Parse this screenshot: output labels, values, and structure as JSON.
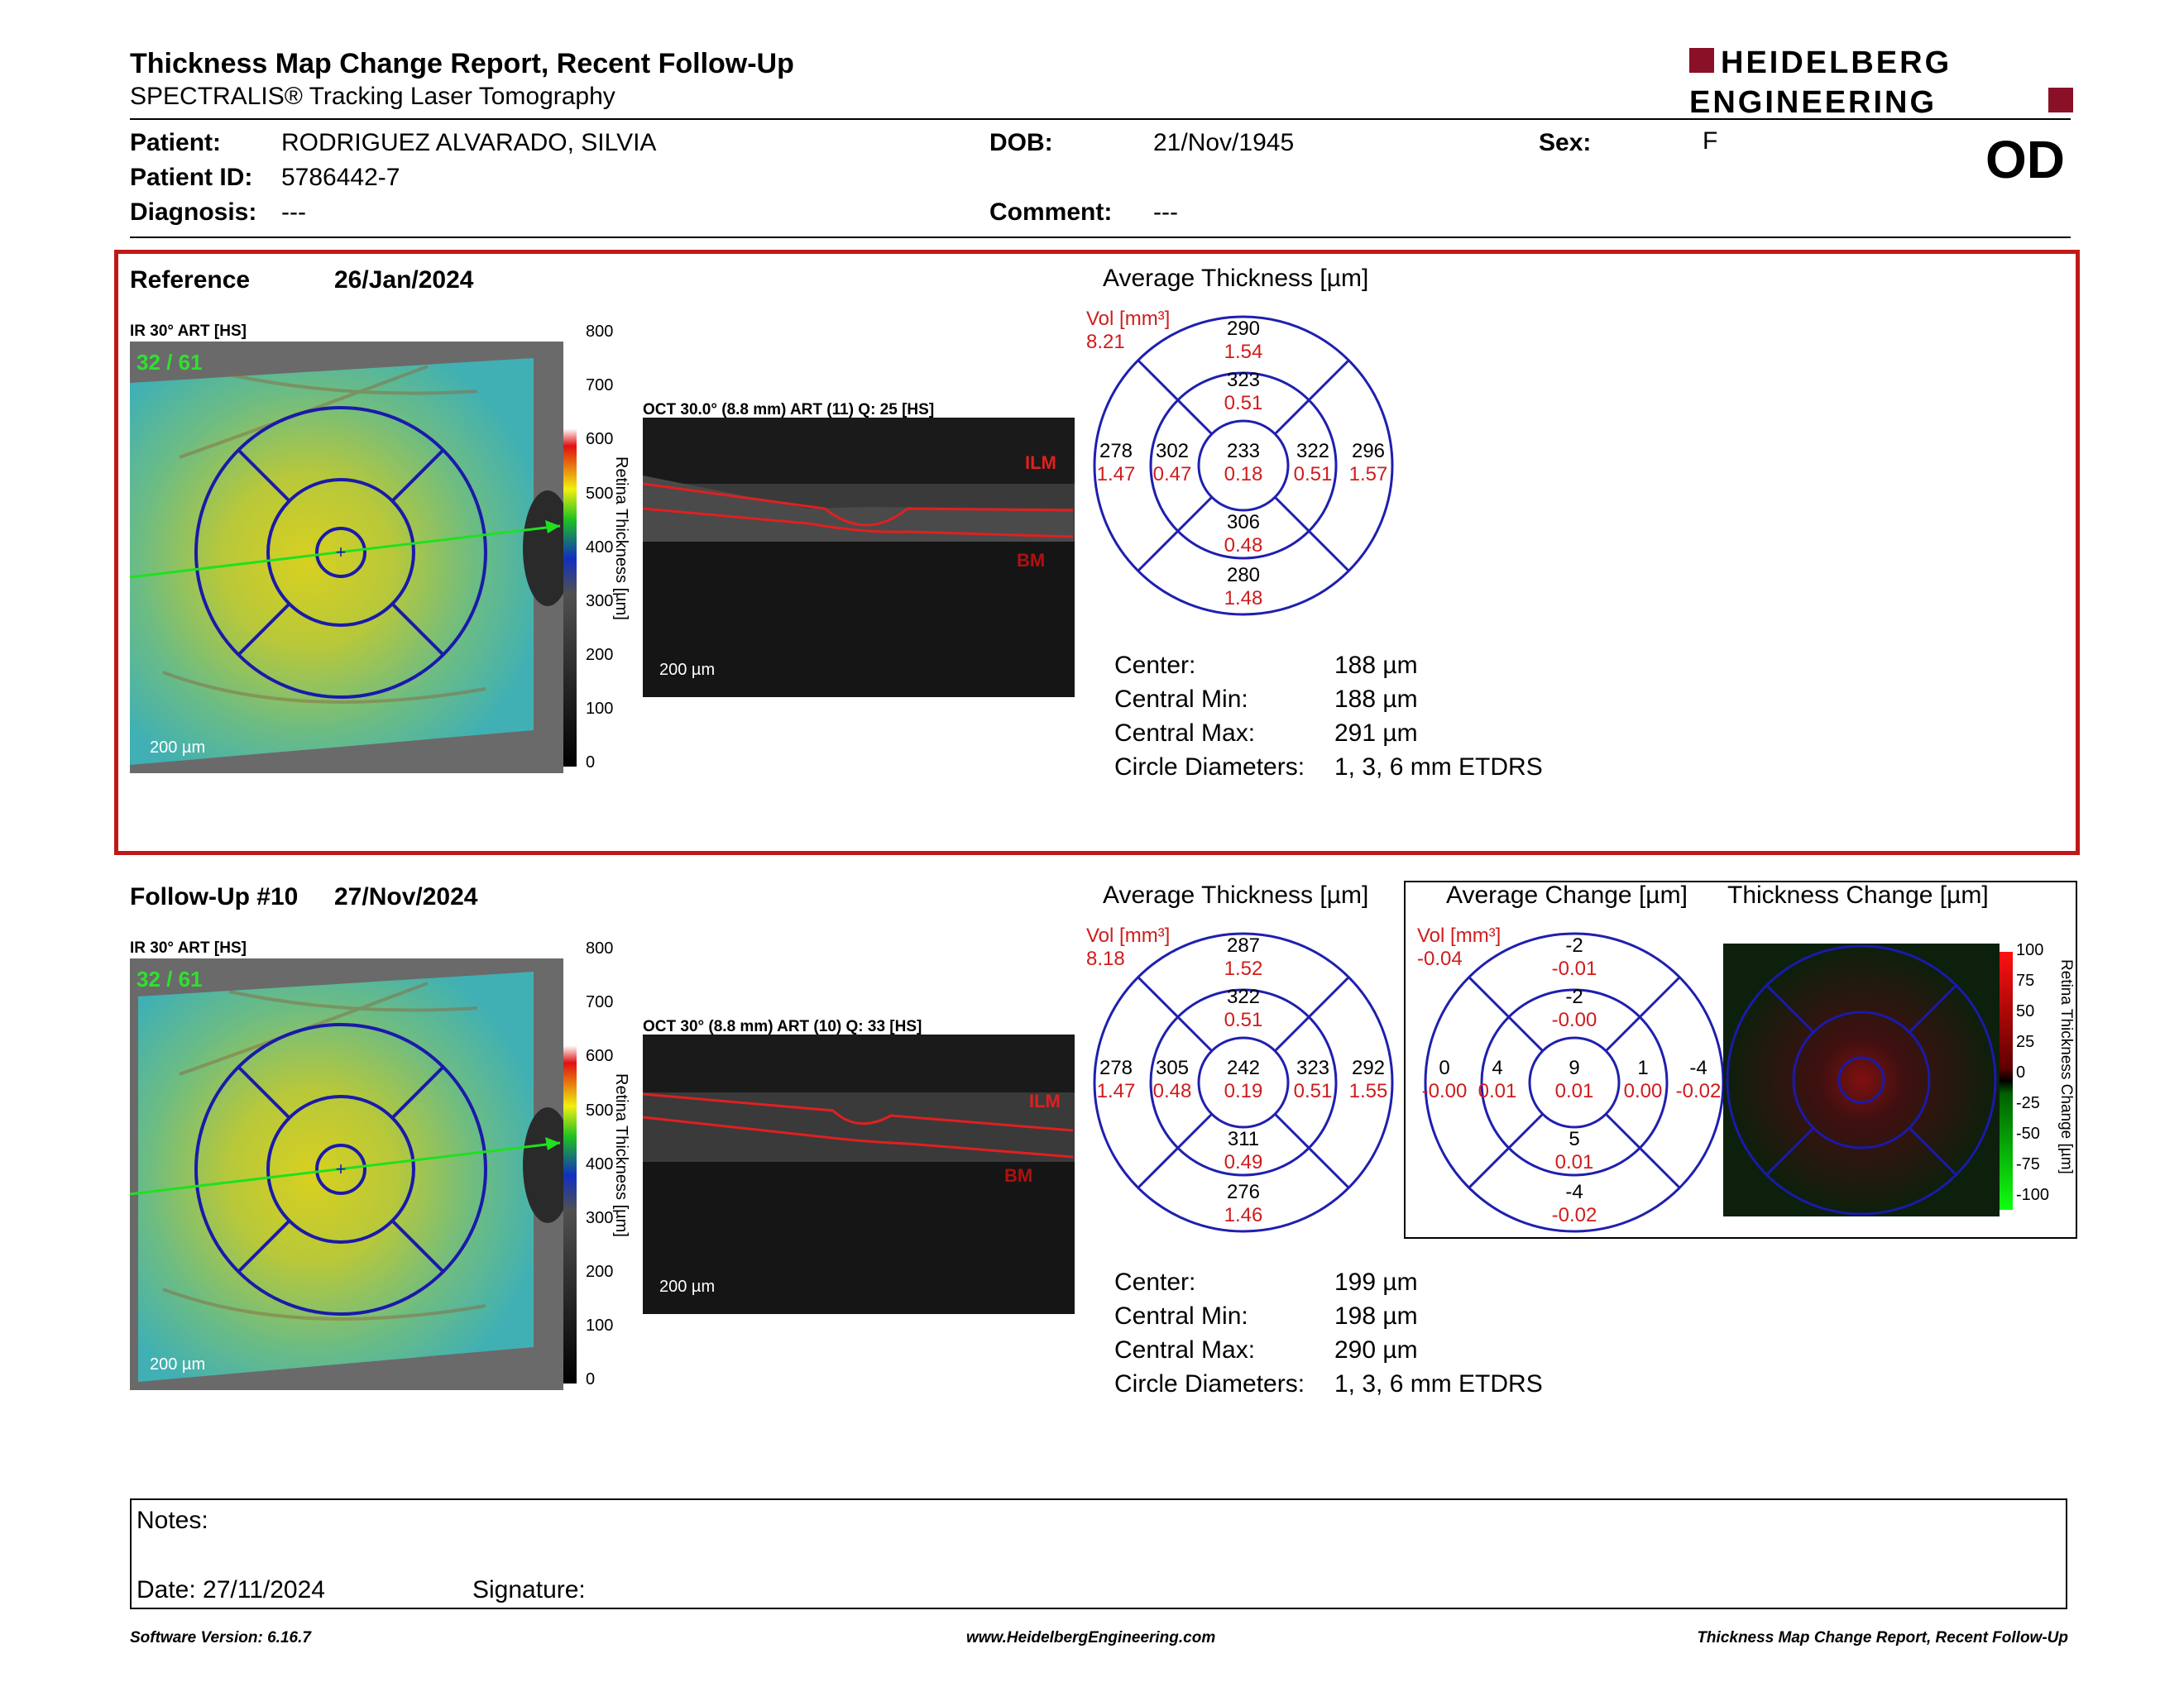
{
  "header": {
    "title": "Thickness Map Change Report, Recent Follow-Up",
    "subtitle": "SPECTRALIS® Tracking Laser Tomography",
    "logo_line1": "HEIDELBERG",
    "logo_line2": "ENGINEERING",
    "eye": "OD"
  },
  "patient": {
    "patient_label": "Patient:",
    "patient_value": "RODRIGUEZ ALVARADO, SILVIA",
    "id_label": "Patient ID:",
    "id_value": "5786442-7",
    "diag_label": "Diagnosis:",
    "diag_value": "---",
    "dob_label": "DOB:",
    "dob_value": "21/Nov/1945",
    "comment_label": "Comment:",
    "comment_value": "---",
    "sex_label": "Sex:",
    "sex_value": "F"
  },
  "reference": {
    "label": "Reference",
    "date": "26/Jan/2024",
    "ir_label": "IR 30° ART [HS]",
    "frames": "32 / 61",
    "scale": "200 µm",
    "oct_label": "OCT 30.0° (8.8 mm) ART (11) Q: 25 [HS]",
    "oct_scale": "200 µm",
    "ilm": "ILM",
    "bm": "BM",
    "avg_title": "Average Thickness [µm]",
    "vol_label": "Vol [mm³]",
    "vol_value": "8.21",
    "grid": {
      "top_outer": [
        "290",
        "1.54"
      ],
      "top_inner": [
        "323",
        "0.51"
      ],
      "left_outer": [
        "278",
        "1.47"
      ],
      "left_inner": [
        "302",
        "0.47"
      ],
      "center": [
        "233",
        "0.18"
      ],
      "right_inner": [
        "322",
        "0.51"
      ],
      "right_outer": [
        "296",
        "1.57"
      ],
      "bottom_inner": [
        "306",
        "0.48"
      ],
      "bottom_outer": [
        "280",
        "1.48"
      ]
    },
    "stats": [
      {
        "label": "Center:",
        "value": "188 µm"
      },
      {
        "label": "Central Min:",
        "value": "188 µm"
      },
      {
        "label": "Central Max:",
        "value": "291 µm"
      },
      {
        "label": "Circle Diameters:",
        "value": "1, 3, 6 mm ETDRS"
      }
    ]
  },
  "followup": {
    "label": "Follow-Up #10",
    "date": "27/Nov/2024",
    "ir_label": "IR 30° ART [HS]",
    "frames": "32 / 61",
    "scale": "200 µm",
    "oct_label": "OCT 30° (8.8 mm) ART (10) Q: 33 [HS]",
    "oct_scale": "200 µm",
    "ilm": "ILM",
    "bm": "BM",
    "avg_title": "Average Thickness [µm]",
    "vol_label": "Vol [mm³]",
    "vol_value": "8.18",
    "grid": {
      "top_outer": [
        "287",
        "1.52"
      ],
      "top_inner": [
        "322",
        "0.51"
      ],
      "left_outer": [
        "278",
        "1.47"
      ],
      "left_inner": [
        "305",
        "0.48"
      ],
      "center": [
        "242",
        "0.19"
      ],
      "right_inner": [
        "323",
        "0.51"
      ],
      "right_outer": [
        "292",
        "1.55"
      ],
      "bottom_inner": [
        "311",
        "0.49"
      ],
      "bottom_outer": [
        "276",
        "1.46"
      ]
    },
    "stats": [
      {
        "label": "Center:",
        "value": "199 µm"
      },
      {
        "label": "Central Min:",
        "value": "198 µm"
      },
      {
        "label": "Central Max:",
        "value": "290 µm"
      },
      {
        "label": "Circle Diameters:",
        "value": "1, 3, 6 mm ETDRS"
      }
    ],
    "change_title": "Average Change [µm]",
    "change_vol_label": "Vol [mm³]",
    "change_vol_value": "-0.04",
    "change_grid": {
      "top_outer": [
        "-2",
        "-0.01"
      ],
      "top_inner": [
        "-2",
        "-0.00"
      ],
      "left_outer": [
        "0",
        "-0.00"
      ],
      "left_inner": [
        "4",
        "0.01"
      ],
      "center": [
        "9",
        "0.01"
      ],
      "right_inner": [
        "1",
        "0.00"
      ],
      "right_outer": [
        "-4",
        "-0.02"
      ],
      "bottom_inner": [
        "5",
        "0.01"
      ],
      "bottom_outer": [
        "-4",
        "-0.02"
      ]
    },
    "thick_change_title": "Thickness Change [µm]",
    "change_bar_label": "Retina Thickness Change [µm]",
    "change_ticks": [
      "100",
      "75",
      "50",
      "25",
      "0",
      "-25",
      "-50",
      "-75",
      "-100"
    ]
  },
  "colorbar": {
    "label": "Retina Thickness [µm]",
    "ticks": [
      "800",
      "700",
      "600",
      "500",
      "400",
      "300",
      "200",
      "100",
      "0"
    ]
  },
  "notes": {
    "notes_label": "Notes:",
    "date_label": "Date: 27/11/2024",
    "signature_label": "Signature:"
  },
  "footer": {
    "left": "Software Version: 6.16.7",
    "center": "www.HeidelbergEngineering.com",
    "right": "Thickness Map Change Report, Recent Follow-Up"
  },
  "colors": {
    "accent": "#c01818",
    "grid_blue": "#1f1fb0",
    "value_red": "#d01c1c"
  }
}
